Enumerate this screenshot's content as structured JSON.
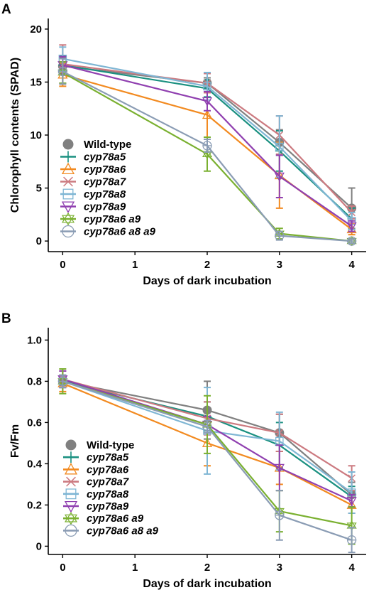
{
  "chart_data": [
    {
      "panel": "A",
      "type": "line",
      "xlabel": "Days of dark incubation",
      "ylabel": "Chlorophyll contents (SPAD)",
      "x": [
        0,
        2,
        3,
        4
      ],
      "xlim": [
        -0.2,
        4.2
      ],
      "ylim": [
        -1,
        21
      ],
      "xticks": [
        0,
        1,
        2,
        3,
        4
      ],
      "yticks": [
        0,
        5,
        10,
        15,
        20
      ],
      "grid": false,
      "legend_position": "bottom-left",
      "series": [
        {
          "name": "Wild-type",
          "color": "#808080",
          "values": [
            16.5,
            14.9,
            9.3,
            3.1
          ],
          "err": [
            0.8,
            0.5,
            1.2,
            1.9
          ]
        },
        {
          "name": "cyp78a5",
          "color": "#1a9080",
          "values": [
            16.6,
            14.4,
            8.5,
            2.1
          ],
          "err": [
            0.9,
            0.8,
            1.9,
            1.0
          ]
        },
        {
          "name": "cyp78a6",
          "color": "#f28a20",
          "values": [
            15.7,
            11.9,
            6.2,
            1.1
          ],
          "err": [
            1.1,
            2.1,
            3.1,
            0.5
          ]
        },
        {
          "name": "cyp78a7",
          "color": "#cc7a80",
          "values": [
            16.7,
            14.9,
            10.0,
            2.7
          ],
          "err": [
            1.8,
            0.9,
            1.8,
            0.6
          ]
        },
        {
          "name": "cyp78a8",
          "color": "#7fb6d4",
          "values": [
            17.2,
            14.6,
            8.9,
            1.9
          ],
          "err": [
            1.1,
            1.3,
            2.9,
            0.8
          ]
        },
        {
          "name": "cyp78a9",
          "color": "#9040b0",
          "values": [
            16.6,
            13.2,
            6.1,
            1.4
          ],
          "err": [
            0.8,
            0.9,
            2.0,
            0.5
          ]
        },
        {
          "name": "cyp78a6 a9",
          "color": "#7ab030",
          "values": [
            15.9,
            8.2,
            0.7,
            0.0
          ],
          "err": [
            1.0,
            1.6,
            0.5,
            0.2
          ]
        },
        {
          "name": "cyp78a6 a8 a9",
          "color": "#8a9cb4",
          "values": [
            16.0,
            9.0,
            0.5,
            0.0
          ],
          "err": [
            1.2,
            0.6,
            0.4,
            0.2
          ]
        }
      ]
    },
    {
      "panel": "B",
      "type": "line",
      "xlabel": "Days of dark incubation",
      "ylabel": "Fv/Fm",
      "x": [
        0,
        2,
        3,
        4
      ],
      "xlim": [
        -0.2,
        4.2
      ],
      "ylim": [
        -0.04,
        1.06
      ],
      "xticks": [
        0,
        1,
        2,
        3,
        4
      ],
      "yticks": [
        0,
        0.2,
        0.4,
        0.6,
        0.8,
        1.0
      ],
      "ytick_labels": [
        "0",
        "0.2",
        "0.4",
        "0.6",
        "0.8",
        "1.0"
      ],
      "grid": false,
      "legend_position": "bottom-left",
      "series": [
        {
          "name": "Wild-type",
          "color": "#808080",
          "values": [
            0.8,
            0.66,
            0.55,
            0.25
          ],
          "err": [
            0.02,
            0.14,
            0.09,
            0.06
          ]
        },
        {
          "name": "cyp78a5",
          "color": "#1a9080",
          "values": [
            0.8,
            0.63,
            0.49,
            0.24
          ],
          "err": [
            0.03,
            0.07,
            0.11,
            0.05
          ]
        },
        {
          "name": "cyp78a6",
          "color": "#f28a20",
          "values": [
            0.79,
            0.5,
            0.38,
            0.2
          ],
          "err": [
            0.04,
            0.11,
            0.08,
            0.04
          ]
        },
        {
          "name": "cyp78a7",
          "color": "#cc7a80",
          "values": [
            0.81,
            0.62,
            0.55,
            0.33
          ],
          "err": [
            0.04,
            0.08,
            0.09,
            0.06
          ]
        },
        {
          "name": "cyp78a8",
          "color": "#7fb6d4",
          "values": [
            0.8,
            0.56,
            0.51,
            0.26
          ],
          "err": [
            0.03,
            0.21,
            0.14,
            0.1
          ]
        },
        {
          "name": "cyp78a9",
          "color": "#9040b0",
          "values": [
            0.81,
            0.59,
            0.38,
            0.22
          ],
          "err": [
            0.04,
            0.04,
            0.11,
            0.03
          ]
        },
        {
          "name": "cyp78a6 a9",
          "color": "#7ab030",
          "values": [
            0.8,
            0.59,
            0.17,
            0.1
          ],
          "err": [
            0.06,
            0.14,
            0.1,
            0.09
          ]
        },
        {
          "name": "cyp78a6 a8 a9",
          "color": "#8a9cb4",
          "values": [
            0.8,
            0.58,
            0.15,
            0.03
          ],
          "err": [
            0.03,
            0.03,
            0.12,
            0.06
          ]
        }
      ]
    }
  ]
}
